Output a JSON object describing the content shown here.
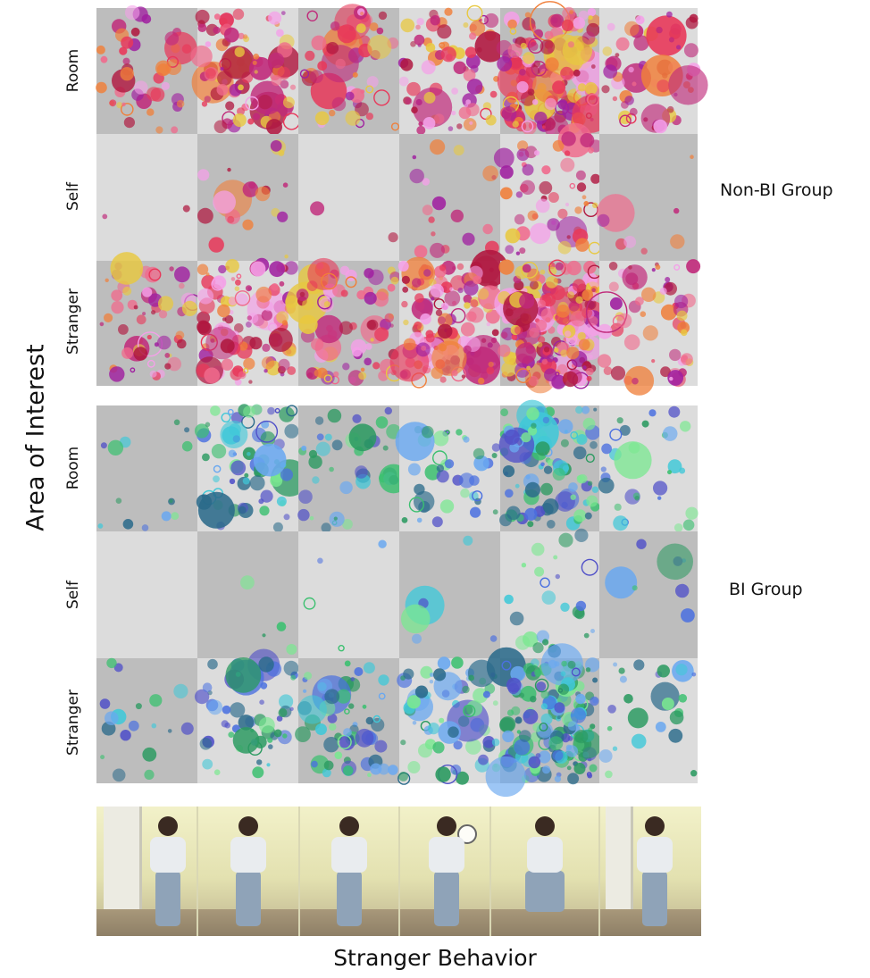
{
  "chart_data": {
    "type": "scatter",
    "title": "",
    "xlabel": "Stranger Behavior",
    "ylabel": "Area of Interest",
    "rows": [
      "Room",
      "Self",
      "Stranger"
    ],
    "groups": [
      {
        "name": "Non-BI Group",
        "palette": [
          "#e8385a",
          "#c0297a",
          "#a020a0",
          "#f06a8c",
          "#f4a0e8",
          "#f07f3a",
          "#e8c840",
          "#b01840"
        ]
      },
      {
        "name": "BI Group",
        "palette": [
          "#3cc070",
          "#2a9a60",
          "#4a70e0",
          "#6aa8f0",
          "#40c8d8",
          "#5050c8",
          "#2a6a8a",
          "#7ae890"
        ]
      }
    ],
    "columns": 6,
    "panel_density": [
      [
        [
          45,
          90,
          55,
          75,
          180,
          60
        ],
        [
          2,
          20,
          2,
          18,
          55,
          8
        ],
        [
          55,
          110,
          80,
          130,
          220,
          60
        ]
      ],
      [
        [
          14,
          70,
          40,
          40,
          100,
          30
        ],
        [
          0,
          4,
          4,
          6,
          25,
          8
        ],
        [
          18,
          55,
          60,
          70,
          160,
          25
        ]
      ]
    ],
    "colors": {
      "panel_dark": "#bdbdbd",
      "panel_light": "#dcdcdc"
    }
  }
}
